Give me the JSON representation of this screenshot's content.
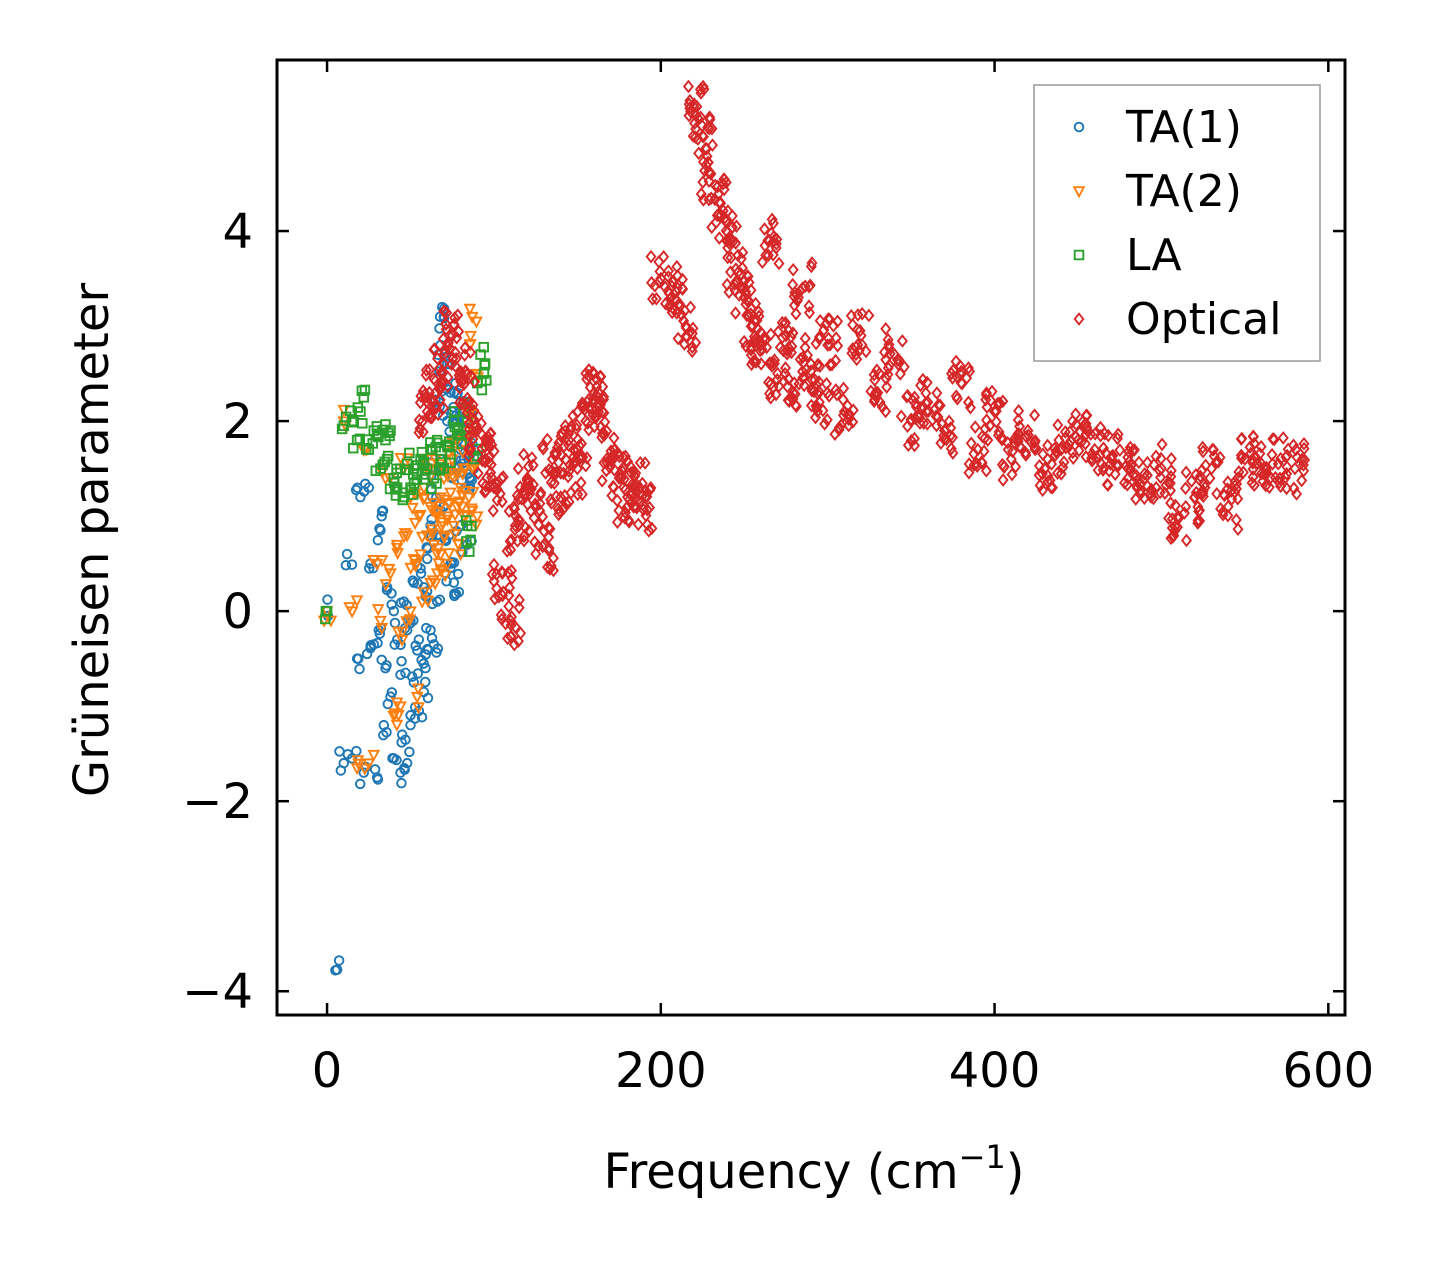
{
  "chart_data": {
    "type": "scatter",
    "title": "",
    "xlabel": "Frequency (cm",
    "xlabel_sup": "−1",
    "xlabel_end": ")",
    "ylabel": "Grüneisen parameter",
    "xlim": [
      -30,
      610
    ],
    "ylim": [
      -4.25,
      5.8
    ],
    "xticks": [
      0,
      200,
      400,
      600
    ],
    "xtick_labels": [
      "0",
      "200",
      "400",
      "600"
    ],
    "yticks": [
      -4,
      -2,
      0,
      2,
      4
    ],
    "ytick_labels": [
      "−4",
      "−2",
      "0",
      "2",
      "4"
    ],
    "grid": false,
    "legend_position": "top-right",
    "series": [
      {
        "name": "TA(1)",
        "marker": "circle",
        "color": "#1f77b4",
        "x": [
          0,
          5,
          10,
          12,
          15,
          18,
          20,
          22,
          24,
          25,
          26,
          28,
          30,
          31,
          32,
          33,
          34,
          35,
          36,
          38,
          40,
          40,
          42,
          44,
          45,
          46,
          47,
          48,
          48,
          50,
          50,
          52,
          52,
          55,
          55,
          56,
          58,
          58,
          59,
          60,
          60,
          62,
          62,
          63,
          64,
          65,
          66,
          66,
          67,
          68,
          68,
          69,
          70,
          70,
          70,
          71,
          72,
          72,
          73,
          74,
          74,
          75,
          75,
          76,
          76,
          77,
          78,
          78,
          79,
          80,
          80,
          80,
          82,
          82,
          83,
          84,
          84,
          85,
          86,
          86,
          88,
          88
        ],
        "y": [
          0,
          -3.78,
          -1.6,
          0.6,
          -1.55,
          -0.5,
          1.2,
          -1.7,
          -0.45,
          1.3,
          0.5,
          -0.35,
          -1.75,
          -0.2,
          0.85,
          1.05,
          -1.2,
          -0.6,
          0.25,
          -0.9,
          0.0,
          -1.55,
          -0.3,
          -1.7,
          -1.3,
          0.1,
          -0.65,
          -0.2,
          -1.6,
          -0.1,
          -1.2,
          0.3,
          -0.75,
          -0.3,
          -1.05,
          0.45,
          -0.85,
          0.25,
          -0.6,
          -0.4,
          0.55,
          -0.2,
          0.9,
          1.2,
          -0.35,
          1.5,
          0.1,
          0.8,
          2.2,
          1.6,
          2.8,
          3.2,
          3.1,
          2.4,
          1.1,
          0.4,
          2.6,
          2.0,
          0.8,
          0.5,
          2.3,
          1.4,
          2.1,
          1.8,
          0.3,
          2.4,
          1.5,
          2.0,
          0.2,
          1.7,
          2.2,
          0.9,
          1.6,
          2.0,
          1.3,
          1.85,
          0.7,
          1.6,
          1.4,
          2.1,
          1.5,
          1.7
        ]
      },
      {
        "name": "TA(2)",
        "marker": "triangle",
        "color": "#ff7f0e",
        "x": [
          0,
          10,
          15,
          18,
          22,
          25,
          30,
          32,
          35,
          38,
          40,
          42,
          44,
          45,
          46,
          48,
          50,
          50,
          52,
          54,
          55,
          56,
          58,
          58,
          60,
          60,
          62,
          62,
          64,
          65,
          66,
          66,
          68,
          68,
          70,
          70,
          72,
          72,
          74,
          75,
          76,
          76,
          78,
          78,
          80,
          80,
          82,
          82,
          84,
          85,
          86,
          86,
          87,
          88,
          88,
          90,
          90
        ],
        "y": [
          0,
          2.0,
          0.0,
          -1.65,
          1.7,
          -1.6,
          0.5,
          -0.1,
          1.4,
          0.4,
          -1.1,
          0.7,
          -1.0,
          -0.3,
          1.5,
          0.8,
          0.0,
          1.2,
          0.55,
          -0.9,
          1.0,
          0.6,
          1.3,
          0.2,
          0.8,
          1.5,
          0.3,
          1.1,
          0.7,
          1.6,
          1.0,
          0.4,
          1.2,
          0.6,
          1.4,
          0.8,
          1.0,
          0.5,
          1.25,
          1.6,
          0.9,
          1.4,
          1.1,
          1.8,
          0.6,
          1.3,
          1.0,
          1.5,
          1.7,
          1.2,
          2.1,
          2.9,
          3.1,
          1.9,
          1.5,
          2.5,
          1.0
        ]
      },
      {
        "name": "LA",
        "marker": "square",
        "color": "#2ca02c",
        "x": [
          0,
          10,
          15,
          18,
          20,
          22,
          25,
          28,
          30,
          32,
          35,
          36,
          38,
          40,
          42,
          44,
          46,
          48,
          50,
          52,
          54,
          56,
          58,
          60,
          62,
          64,
          66,
          68,
          70,
          72,
          74,
          76,
          78,
          80,
          82,
          84,
          86,
          88,
          90,
          92,
          94
        ],
        "y": [
          0,
          1.95,
          2.0,
          1.8,
          2.1,
          2.25,
          1.7,
          1.9,
          1.85,
          1.5,
          1.8,
          1.6,
          1.9,
          1.4,
          1.3,
          1.5,
          1.2,
          1.55,
          1.3,
          1.5,
          1.45,
          1.6,
          1.55,
          1.5,
          1.7,
          1.4,
          1.8,
          1.6,
          1.5,
          1.75,
          1.65,
          2.0,
          1.9,
          1.85,
          2.1,
          0.9,
          0.75,
          1.6,
          2.4,
          2.7,
          2.5
        ]
      },
      {
        "name": "Optical",
        "marker": "diamond",
        "color": "#d62728",
        "x": [
          60,
          65,
          70,
          75,
          80,
          85,
          90,
          95,
          100,
          105,
          110,
          115,
          120,
          125,
          130,
          135,
          140,
          145,
          150,
          155,
          160,
          165,
          170,
          175,
          180,
          185,
          190,
          200,
          210,
          215,
          220,
          225,
          230,
          235,
          240,
          245,
          250,
          255,
          260,
          265,
          270,
          275,
          280,
          285,
          290,
          295,
          300,
          310,
          320,
          330,
          340,
          350,
          360,
          370,
          380,
          390,
          400,
          410,
          420,
          430,
          440,
          450,
          460,
          470,
          480,
          490,
          500,
          510,
          520,
          530,
          540,
          550,
          560,
          570,
          580
        ],
        "y": [
          2.1,
          2.3,
          2.6,
          2.9,
          2.5,
          2.2,
          1.9,
          1.6,
          1.3,
          0.4,
          -0.1,
          0.9,
          1.4,
          1.1,
          0.7,
          1.6,
          1.2,
          1.8,
          1.5,
          2.0,
          2.3,
          2.1,
          1.6,
          1.4,
          1.2,
          1.3,
          1.1,
          3.5,
          3.4,
          3.0,
          5.3,
          5.0,
          4.6,
          4.3,
          3.9,
          3.6,
          3.3,
          3.0,
          2.8,
          3.9,
          2.5,
          2.9,
          2.4,
          3.4,
          2.6,
          2.2,
          2.8,
          2.1,
          2.9,
          2.3,
          2.7,
          2.0,
          2.2,
          1.9,
          2.4,
          1.7,
          2.1,
          1.6,
          1.9,
          1.5,
          1.7,
          1.8,
          1.7,
          1.6,
          1.5,
          1.4,
          1.5,
          1.0,
          1.2,
          1.5,
          1.1,
          1.6,
          1.55,
          1.55,
          1.5
        ]
      }
    ]
  }
}
